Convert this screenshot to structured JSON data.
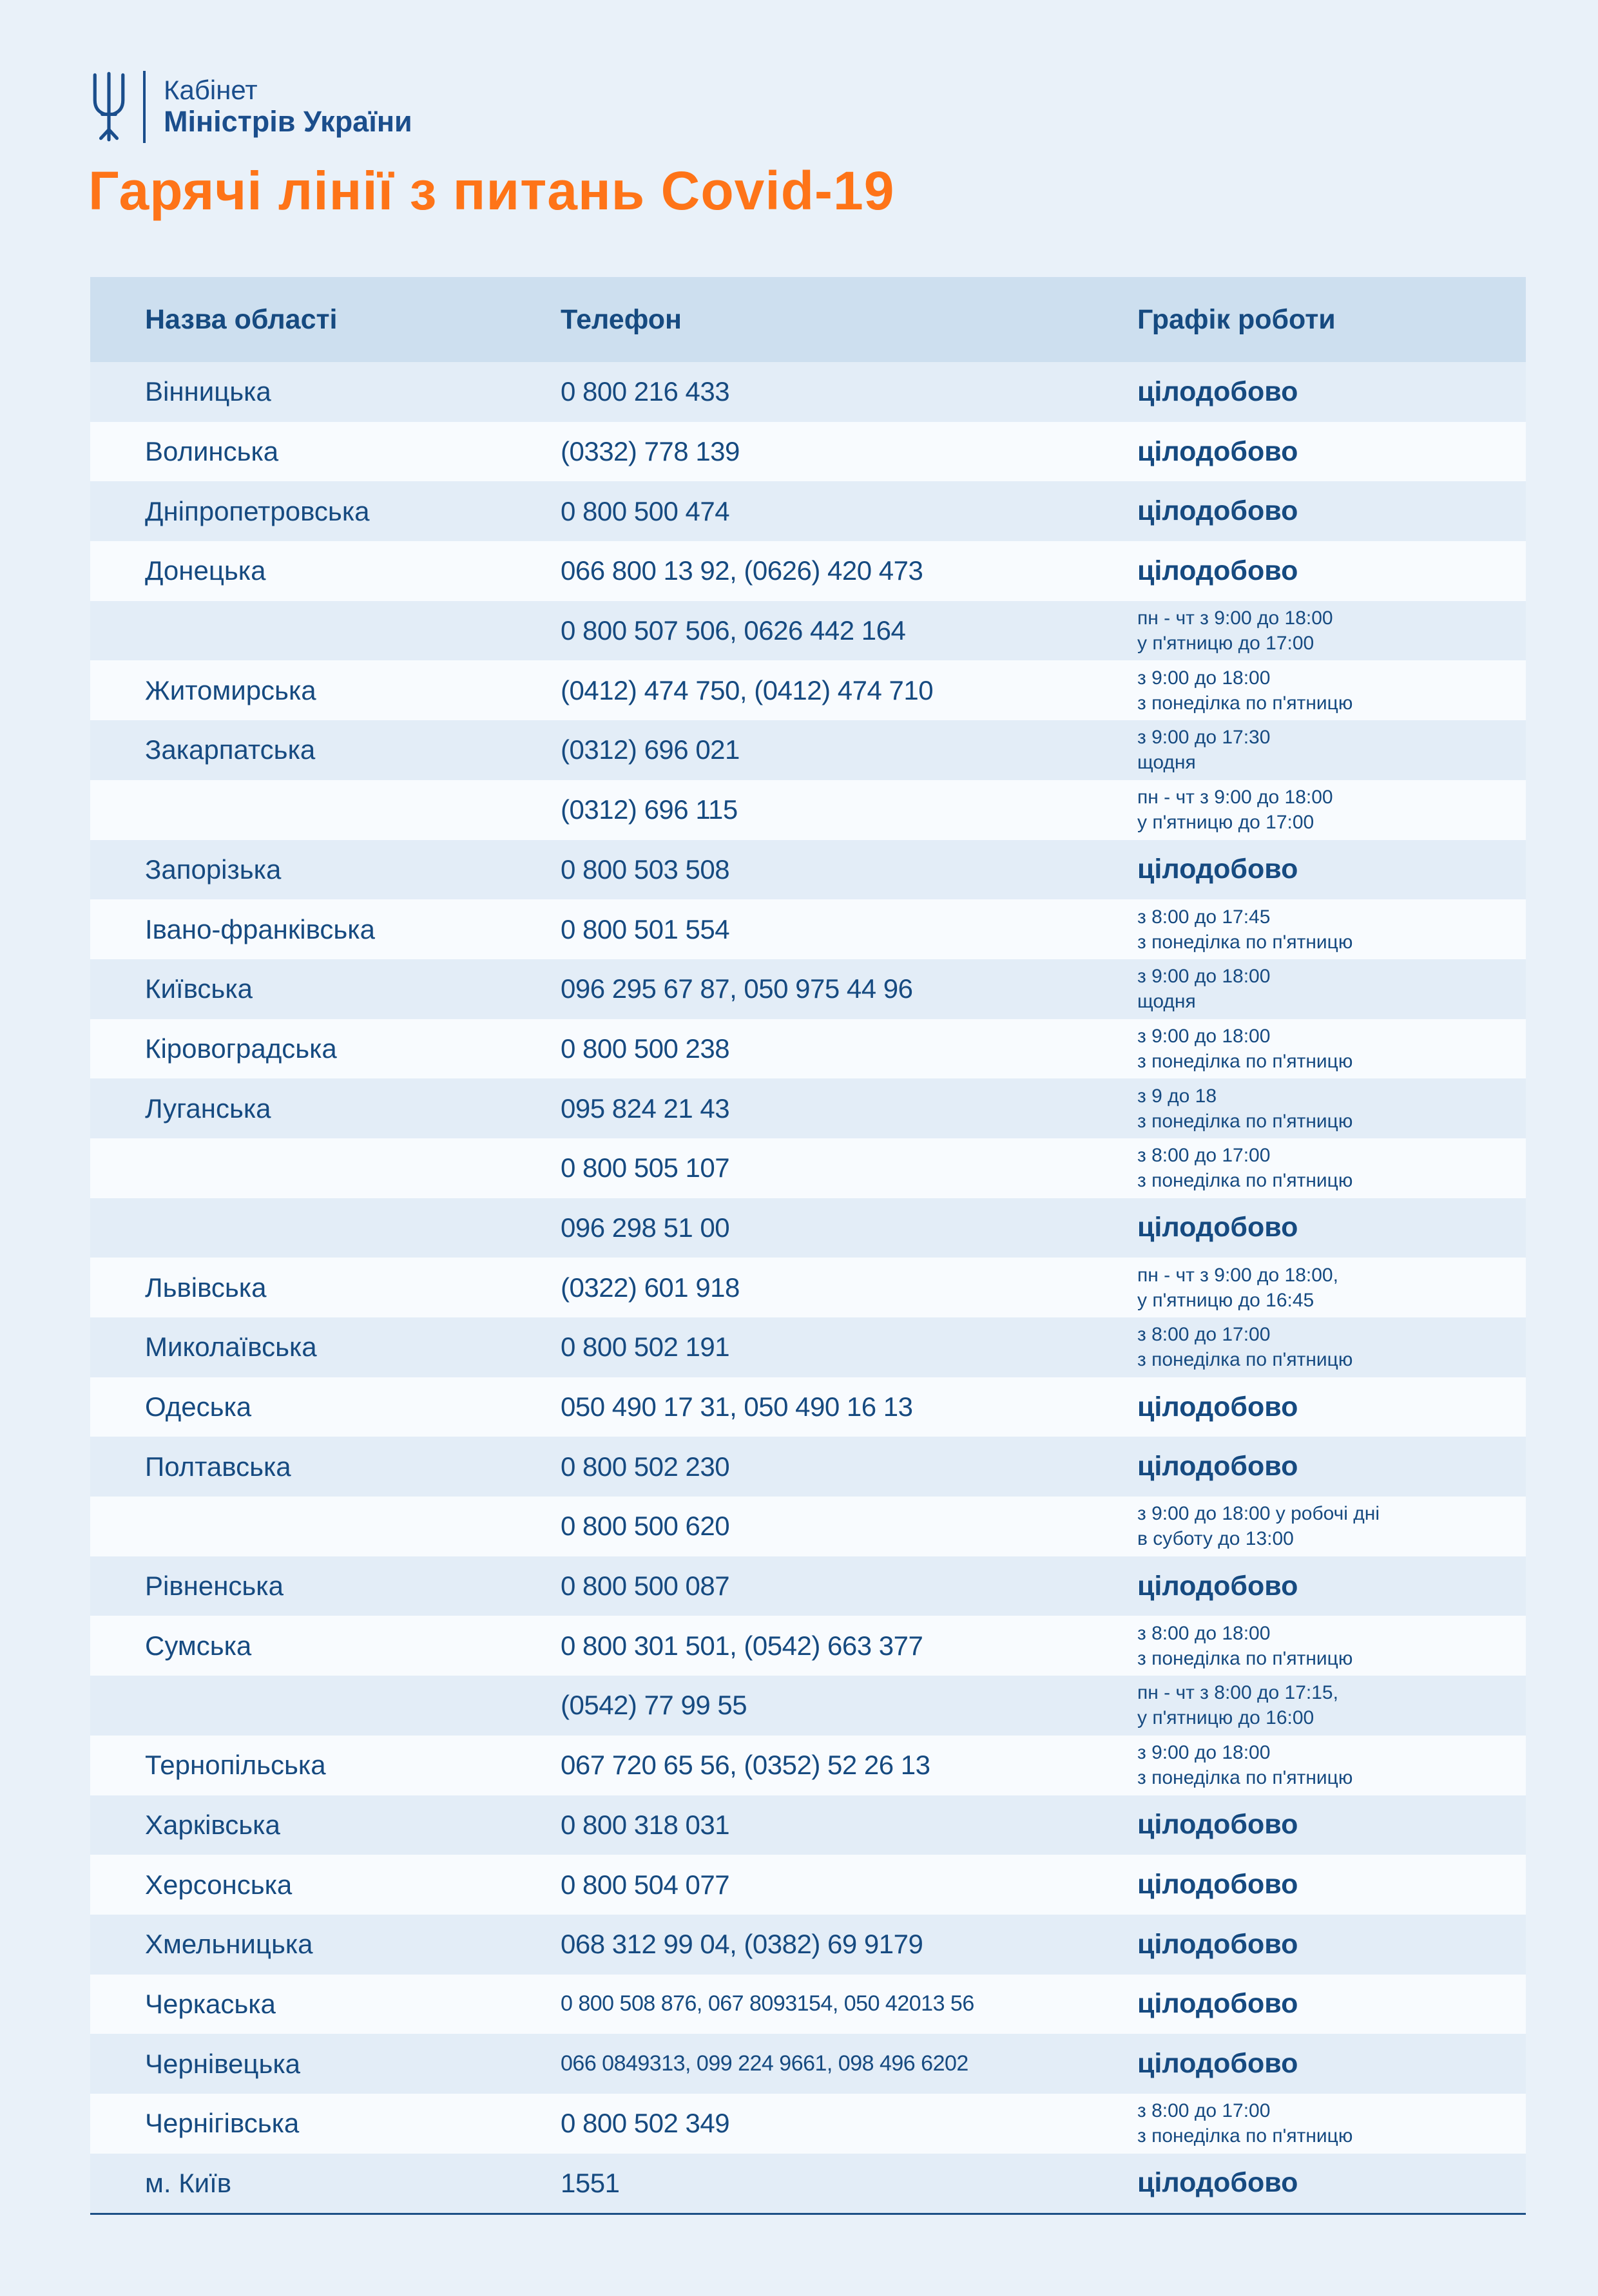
{
  "logo": {
    "icon": "ukraine-trident-icon",
    "org_line1": "Кабінет",
    "org_line2": "Міністрів України",
    "color": "#1b4e8c"
  },
  "title": "Гарячі лінії з питань Covid-19",
  "title_color": "#fe7418",
  "colors": {
    "page_background": "#e9f1f9",
    "table_header_background": "#cddfef",
    "row_odd_background": "#e3edf7",
    "row_even_background": "#f8fbfe",
    "text_navy": "#164a80",
    "bottom_rule": "#1d5086"
  },
  "table": {
    "headers": [
      "Назва області",
      "Телефон",
      "Графік роботи"
    ],
    "rows": [
      {
        "region": "Вінницька",
        "phone": "0 800 216 433",
        "schedule": [
          "цілодобово"
        ],
        "schedule_bold": true
      },
      {
        "region": "Волинська",
        "phone": "(0332) 778 139",
        "schedule": [
          "цілодобово"
        ],
        "schedule_bold": true
      },
      {
        "region": "Дніпропетровська",
        "phone": "0 800 500 474",
        "schedule": [
          "цілодобово"
        ],
        "schedule_bold": true
      },
      {
        "region": "Донецька",
        "phone": "066 800 13 92, (0626) 420 473",
        "schedule": [
          "цілодобово"
        ],
        "schedule_bold": true
      },
      {
        "region": "",
        "phone": "0 800 507 506,  0626 442 164",
        "schedule": [
          "пн - чт з 9:00 до 18:00",
          "у п'ятницю до 17:00"
        ],
        "schedule_bold": false
      },
      {
        "region": "Житомирська",
        "phone": "(0412) 474 750, (0412) 474 710",
        "schedule": [
          "з 9:00 до 18:00",
          "з понеділка по п'ятницю"
        ],
        "schedule_bold": false
      },
      {
        "region": "Закарпатська",
        "phone": "(0312) 696 021",
        "schedule": [
          "з 9:00 до 17:30",
          "щодня"
        ],
        "schedule_bold": false
      },
      {
        "region": "",
        "phone": "(0312) 696 115",
        "schedule": [
          "пн - чт з 9:00 до 18:00",
          "у п'ятницю до 17:00"
        ],
        "schedule_bold": false
      },
      {
        "region": "Запорізька",
        "phone": "0 800 503 508",
        "schedule": [
          "цілодобово"
        ],
        "schedule_bold": true
      },
      {
        "region": "Івано-франківська",
        "phone": "0 800 501 554",
        "schedule": [
          "з 8:00 до 17:45",
          "з понеділка по п'ятницю"
        ],
        "schedule_bold": false
      },
      {
        "region": "Київська",
        "phone": "096 295 67 87, 050 975 44 96",
        "schedule": [
          "з 9:00 до 18:00",
          "щодня"
        ],
        "schedule_bold": false
      },
      {
        "region": "Кіровоградська",
        "phone": "0 800 500 238",
        "schedule": [
          "з 9:00 до 18:00",
          "з понеділка по п'ятницю"
        ],
        "schedule_bold": false
      },
      {
        "region": "Луганська",
        "phone": "095 824 21 43",
        "schedule": [
          "з 9 до 18",
          "з понеділка по п'ятницю"
        ],
        "schedule_bold": false
      },
      {
        "region": "",
        "phone": "0 800 505 107",
        "schedule": [
          "з 8:00 до 17:00",
          "з понеділка по п'ятницю"
        ],
        "schedule_bold": false
      },
      {
        "region": "",
        "phone": "096 298 51 00",
        "schedule": [
          "цілодобово"
        ],
        "schedule_bold": true
      },
      {
        "region": "Львівська",
        "phone": "(0322) 601 918",
        "schedule": [
          "пн - чт з 9:00 до 18:00,",
          "у п'ятницю до 16:45"
        ],
        "schedule_bold": false
      },
      {
        "region": "Миколаївська",
        "phone": "0 800 502 191",
        "schedule": [
          "з 8:00 до 17:00",
          "з понеділка по п'ятницю"
        ],
        "schedule_bold": false
      },
      {
        "region": "Одеська",
        "phone": "050 490 17 31, 050 490 16 13",
        "schedule": [
          "цілодобово"
        ],
        "schedule_bold": true
      },
      {
        "region": "Полтавська",
        "phone": "0 800 502 230",
        "schedule": [
          "цілодобово"
        ],
        "schedule_bold": true
      },
      {
        "region": "",
        "phone": "0 800 500 620",
        "schedule": [
          "з 9:00 до 18:00 у робочі дні",
          "в суботу до 13:00"
        ],
        "schedule_bold": false
      },
      {
        "region": "Рівненська",
        "phone": "0 800 500 087",
        "schedule": [
          "цілодобово"
        ],
        "schedule_bold": true
      },
      {
        "region": "Сумська",
        "phone": "0 800 301 501, (0542) 663 377",
        "schedule": [
          "з 8:00 до 18:00",
          "з понеділка по п'ятницю"
        ],
        "schedule_bold": false
      },
      {
        "region": "",
        "phone": "(0542) 77 99 55",
        "schedule": [
          "пн - чт з 8:00 до 17:15,",
          "у п'ятницю до 16:00"
        ],
        "schedule_bold": false
      },
      {
        "region": "Тернопільська",
        "phone": "067 720 65 56, (0352) 52 26 13",
        "schedule": [
          "з 9:00 до 18:00",
          "з понеділка по п'ятницю"
        ],
        "schedule_bold": false
      },
      {
        "region": "Харківська",
        "phone": "0 800 318 031",
        "schedule": [
          "цілодобово"
        ],
        "schedule_bold": true
      },
      {
        "region": "Херсонська",
        "phone": "0 800 504 077",
        "schedule": [
          "цілодобово"
        ],
        "schedule_bold": true
      },
      {
        "region": "Хмельницька",
        "phone": "068 312 99 04, (0382) 69 9179",
        "schedule": [
          "цілодобово"
        ],
        "schedule_bold": true
      },
      {
        "region": "Черкаська",
        "phone": "0 800 508 876, 067 8093154, 050 42013 56",
        "phone_small": true,
        "schedule": [
          "цілодобово"
        ],
        "schedule_bold": true
      },
      {
        "region": "Чернівецька",
        "phone": "066 0849313, 099 224 9661, 098 496 6202",
        "phone_small": true,
        "schedule": [
          "цілодобово"
        ],
        "schedule_bold": true
      },
      {
        "region": "Чернігівська",
        "phone": "0 800 502 349",
        "schedule": [
          "з 8:00 до 17:00",
          "з понеділка по п'ятницю"
        ],
        "schedule_bold": false
      },
      {
        "region": "м. Київ",
        "phone": "1551",
        "schedule": [
          "цілодобово"
        ],
        "schedule_bold": true
      }
    ]
  }
}
